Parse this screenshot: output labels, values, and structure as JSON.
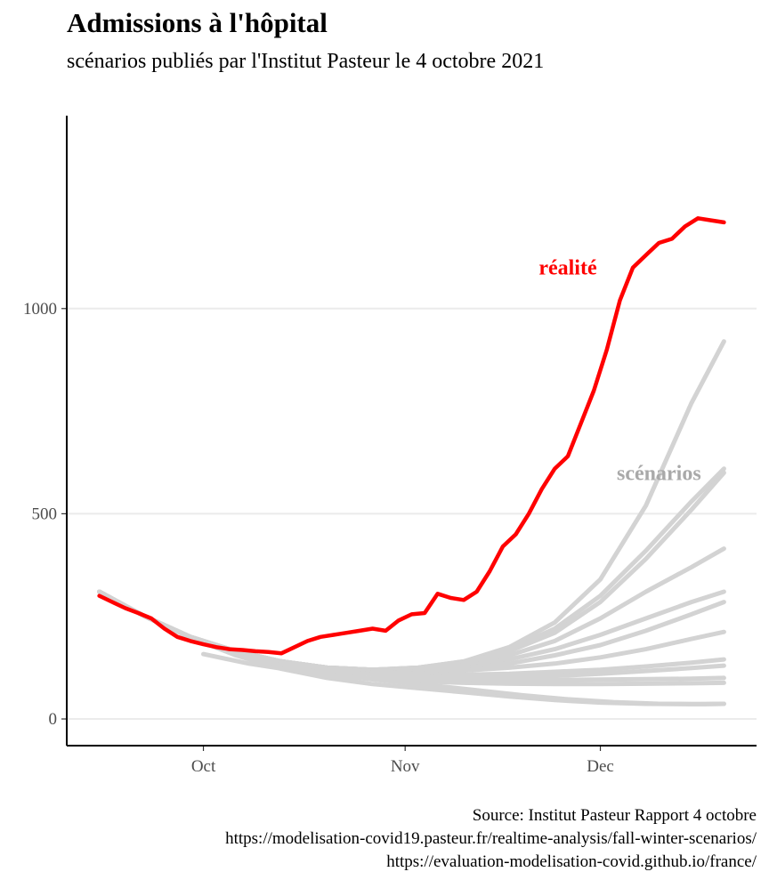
{
  "title": "Admissions à l'hôpital",
  "subtitle": "scénarios publiés par l'Institut Pasteur le 4 octobre 2021",
  "caption": [
    "Source: Institut Pasteur Rapport 4 octobre",
    "https://modelisation-covid19.pasteur.fr/realtime-analysis/fall-winter-scenarios/",
    "https://evaluation-modelisation-covid.github.io/france/"
  ],
  "colors": {
    "realite": "#ff0000",
    "scenarios": "#d3d3d3",
    "scenarios_label": "#a9a9a9",
    "grid": "#ebebeb",
    "axis": "#000000"
  },
  "chart_data": {
    "type": "line",
    "title": "Admissions à l'hôpital",
    "subtitle": "scénarios publiés par l'Institut Pasteur le 4 octobre 2021",
    "xlabel": "",
    "ylabel": "",
    "xlim": [
      "2021-09-10",
      "2021-12-25"
    ],
    "ylim": [
      -65,
      1470
    ],
    "x_ticks": [
      {
        "date": "2021-10-01",
        "label": "Oct"
      },
      {
        "date": "2021-11-01",
        "label": "Nov"
      },
      {
        "date": "2021-12-01",
        "label": "Dec"
      }
    ],
    "y_ticks": [
      {
        "value": 0,
        "label": "0"
      },
      {
        "value": 500,
        "label": "500"
      },
      {
        "value": 1000,
        "label": "1000"
      }
    ],
    "grid": "horizontal major only",
    "legend": "none",
    "annotations": [
      {
        "text": "réalité",
        "x": "2021-11-26",
        "y": 1100,
        "color": "#ff0000"
      },
      {
        "text": "scénarios",
        "x": "2021-12-10",
        "y": 600,
        "color": "#a9a9a9"
      }
    ],
    "series": [
      {
        "name": "réalité",
        "color": "#ff0000",
        "x": [
          "2021-09-15",
          "2021-09-17",
          "2021-09-19",
          "2021-09-21",
          "2021-09-23",
          "2021-09-25",
          "2021-09-27",
          "2021-09-29",
          "2021-10-01",
          "2021-10-03",
          "2021-10-05",
          "2021-10-07",
          "2021-10-09",
          "2021-10-11",
          "2021-10-13",
          "2021-10-15",
          "2021-10-17",
          "2021-10-19",
          "2021-10-21",
          "2021-10-23",
          "2021-10-25",
          "2021-10-27",
          "2021-10-29",
          "2021-10-31",
          "2021-11-02",
          "2021-11-04",
          "2021-11-06",
          "2021-11-08",
          "2021-11-10",
          "2021-11-12",
          "2021-11-14",
          "2021-11-16",
          "2021-11-18",
          "2021-11-20",
          "2021-11-22",
          "2021-11-24",
          "2021-11-26",
          "2021-11-28",
          "2021-11-30",
          "2021-12-02",
          "2021-12-04",
          "2021-12-06",
          "2021-12-08",
          "2021-12-10",
          "2021-12-12",
          "2021-12-14",
          "2021-12-16",
          "2021-12-18",
          "2021-12-20"
        ],
        "values": [
          300,
          285,
          270,
          258,
          245,
          220,
          200,
          190,
          182,
          175,
          170,
          168,
          165,
          163,
          160,
          175,
          190,
          200,
          205,
          210,
          215,
          220,
          215,
          240,
          255,
          258,
          305,
          295,
          290,
          310,
          360,
          420,
          450,
          500,
          560,
          610,
          640,
          720,
          800,
          900,
          1020,
          1100,
          1130,
          1160,
          1170,
          1200,
          1220,
          1215,
          1210
        ]
      },
      {
        "name": "",
        "color": "#d3d3d3",
        "x": [
          "2021-09-15",
          "2021-09-22",
          "2021-09-29",
          "2021-10-06",
          "2021-10-13",
          "2021-10-20",
          "2021-10-27",
          "2021-11-03",
          "2021-11-10",
          "2021-11-17",
          "2021-11-24",
          "2021-12-01",
          "2021-12-08",
          "2021-12-15",
          "2021-12-20"
        ],
        "values": [
          310,
          250,
          200,
          165,
          140,
          125,
          120,
          125,
          140,
          175,
          235,
          340,
          520,
          770,
          920
        ]
      },
      {
        "name": "",
        "color": "#d3d3d3",
        "x": [
          "2021-09-15",
          "2021-09-22",
          "2021-09-29",
          "2021-10-06",
          "2021-10-13",
          "2021-10-20",
          "2021-10-27",
          "2021-11-03",
          "2021-11-10",
          "2021-11-17",
          "2021-11-24",
          "2021-12-01",
          "2021-12-08",
          "2021-12-15",
          "2021-12-20"
        ],
        "values": [
          310,
          250,
          200,
          165,
          140,
          125,
          120,
          125,
          140,
          170,
          220,
          300,
          410,
          530,
          610
        ]
      },
      {
        "name": "",
        "color": "#d3d3d3",
        "x": [
          "2021-09-15",
          "2021-09-22",
          "2021-09-29",
          "2021-10-06",
          "2021-10-13",
          "2021-10-20",
          "2021-10-27",
          "2021-11-03",
          "2021-11-10",
          "2021-11-17",
          "2021-11-24",
          "2021-12-01",
          "2021-12-08",
          "2021-12-15",
          "2021-12-20"
        ],
        "values": [
          310,
          250,
          200,
          165,
          140,
          125,
          120,
          125,
          138,
          165,
          210,
          285,
          390,
          510,
          600
        ]
      },
      {
        "name": "",
        "color": "#d3d3d3",
        "x": [
          "2021-09-15",
          "2021-09-22",
          "2021-09-29",
          "2021-10-06",
          "2021-10-13",
          "2021-10-20",
          "2021-10-27",
          "2021-11-03",
          "2021-11-10",
          "2021-11-17",
          "2021-11-24",
          "2021-12-01",
          "2021-12-08",
          "2021-12-15",
          "2021-12-20"
        ],
        "values": [
          310,
          250,
          200,
          165,
          140,
          125,
          120,
          124,
          135,
          155,
          190,
          245,
          310,
          370,
          415
        ]
      },
      {
        "name": "",
        "color": "#d3d3d3",
        "x": [
          "2021-09-15",
          "2021-09-22",
          "2021-09-29",
          "2021-10-06",
          "2021-10-13",
          "2021-10-20",
          "2021-10-27",
          "2021-11-03",
          "2021-11-10",
          "2021-11-17",
          "2021-11-24",
          "2021-12-01",
          "2021-12-08",
          "2021-12-15",
          "2021-12-20"
        ],
        "values": [
          310,
          250,
          200,
          165,
          140,
          125,
          120,
          122,
          130,
          145,
          170,
          205,
          245,
          285,
          310
        ]
      },
      {
        "name": "",
        "color": "#d3d3d3",
        "x": [
          "2021-09-15",
          "2021-09-22",
          "2021-09-29",
          "2021-10-06",
          "2021-10-13",
          "2021-10-20",
          "2021-10-27",
          "2021-11-03",
          "2021-11-10",
          "2021-11-17",
          "2021-11-24",
          "2021-12-01",
          "2021-12-08",
          "2021-12-15",
          "2021-12-20"
        ],
        "values": [
          310,
          250,
          200,
          165,
          140,
          125,
          120,
          120,
          125,
          135,
          155,
          180,
          215,
          255,
          285
        ]
      },
      {
        "name": "",
        "color": "#d3d3d3",
        "x": [
          "2021-09-15",
          "2021-09-22",
          "2021-09-29",
          "2021-10-06",
          "2021-10-13",
          "2021-10-20",
          "2021-10-27",
          "2021-11-03",
          "2021-11-10",
          "2021-11-17",
          "2021-11-24",
          "2021-12-01",
          "2021-12-08",
          "2021-12-15",
          "2021-12-20"
        ],
        "values": [
          310,
          250,
          200,
          165,
          140,
          125,
          118,
          115,
          118,
          125,
          135,
          150,
          170,
          195,
          212
        ]
      },
      {
        "name": "",
        "color": "#d3d3d3",
        "x": [
          "2021-09-15",
          "2021-09-22",
          "2021-09-29",
          "2021-10-06",
          "2021-10-13",
          "2021-10-20",
          "2021-10-27",
          "2021-11-03",
          "2021-11-10",
          "2021-11-17",
          "2021-11-24",
          "2021-12-01",
          "2021-12-08",
          "2021-12-15",
          "2021-12-20"
        ],
        "values": [
          310,
          250,
          200,
          165,
          140,
          125,
          115,
          110,
          108,
          110,
          115,
          120,
          128,
          137,
          145
        ]
      },
      {
        "name": "",
        "color": "#d3d3d3",
        "x": [
          "2021-09-15",
          "2021-09-22",
          "2021-09-29",
          "2021-10-06",
          "2021-10-13",
          "2021-10-20",
          "2021-10-27",
          "2021-11-03",
          "2021-11-10",
          "2021-11-17",
          "2021-11-24",
          "2021-12-01",
          "2021-12-08",
          "2021-12-15",
          "2021-12-20"
        ],
        "values": [
          310,
          250,
          200,
          165,
          140,
          124,
          112,
          105,
          102,
          103,
          105,
          110,
          117,
          124,
          130
        ]
      },
      {
        "name": "",
        "color": "#d3d3d3",
        "x": [
          "2021-09-15",
          "2021-09-22",
          "2021-09-29",
          "2021-10-06",
          "2021-10-13",
          "2021-10-20",
          "2021-10-27",
          "2021-11-03",
          "2021-11-10",
          "2021-11-17",
          "2021-11-24",
          "2021-12-01",
          "2021-12-08",
          "2021-12-15",
          "2021-12-20"
        ],
        "values": [
          310,
          250,
          200,
          165,
          138,
          120,
          108,
          100,
          96,
          95,
          95,
          96,
          97,
          98,
          100
        ]
      },
      {
        "name": "",
        "color": "#d3d3d3",
        "x": [
          "2021-09-15",
          "2021-09-22",
          "2021-09-29",
          "2021-10-06",
          "2021-10-13",
          "2021-10-20",
          "2021-10-27",
          "2021-11-03",
          "2021-11-10",
          "2021-11-17",
          "2021-11-24",
          "2021-12-01",
          "2021-12-08",
          "2021-12-15",
          "2021-12-20"
        ],
        "values": [
          310,
          250,
          200,
          160,
          130,
          110,
          98,
          92,
          88,
          86,
          85,
          85,
          86,
          87,
          88
        ]
      },
      {
        "name": "",
        "color": "#d3d3d3",
        "x": [
          "2021-09-15",
          "2021-09-22",
          "2021-09-29",
          "2021-10-06",
          "2021-10-13",
          "2021-10-20",
          "2021-10-27",
          "2021-11-03",
          "2021-11-10",
          "2021-11-17",
          "2021-11-24",
          "2021-12-01",
          "2021-12-08",
          "2021-12-15",
          "2021-12-20"
        ],
        "values": [
          310,
          250,
          198,
          155,
          122,
          100,
          85,
          75,
          65,
          55,
          46,
          40,
          37,
          36,
          37
        ]
      },
      {
        "name": "",
        "color": "#d3d3d3",
        "x": [
          "2021-10-01",
          "2021-10-08",
          "2021-10-15",
          "2021-10-22",
          "2021-10-29",
          "2021-11-05",
          "2021-11-12",
          "2021-11-19",
          "2021-11-26",
          "2021-12-03",
          "2021-12-10",
          "2021-12-17",
          "2021-12-20"
        ],
        "values": [
          158,
          135,
          118,
          105,
          93,
          82,
          70,
          58,
          48,
          41,
          37,
          36,
          37
        ]
      }
    ]
  }
}
